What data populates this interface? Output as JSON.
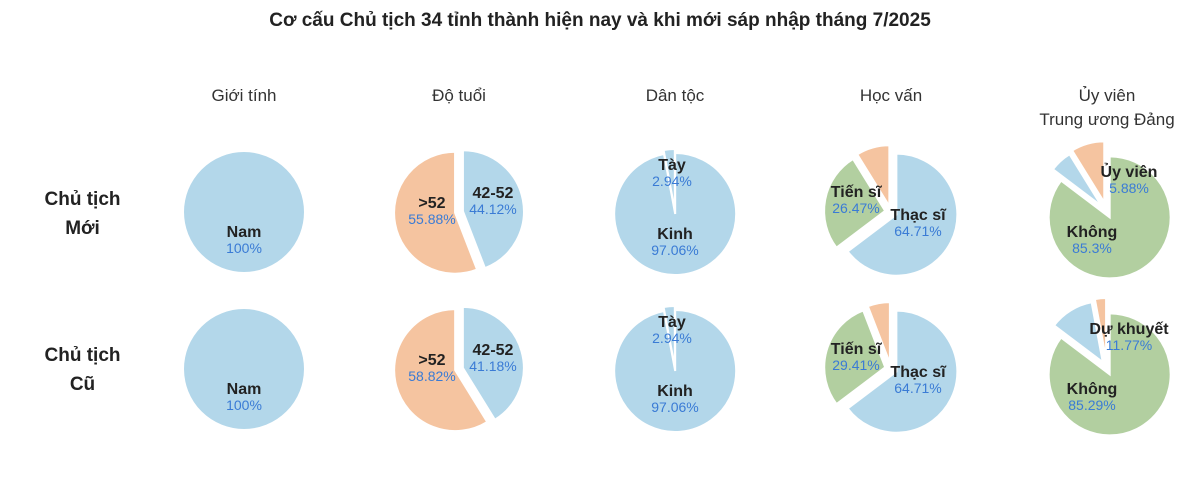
{
  "title": "Cơ cấu Chủ tịch 34 tỉnh thành hiện nay và khi mới sáp nhập tháng 7/2025",
  "columns": [
    "Giới tính",
    "Độ tuổi",
    "Dân tộc",
    "Học vấn",
    "Ủy viên",
    "Trung ương Đảng"
  ],
  "rows": [
    {
      "line1": "Chủ tịch",
      "line2": "Mới"
    },
    {
      "line1": "Chủ tịch",
      "line2": "Cũ"
    }
  ],
  "colors": {
    "blue": "#b3d7ea",
    "orange": "#f5c4a0",
    "green": "#b2cfa0",
    "pct_text": "#3a7bd5"
  },
  "chart_data": [
    {
      "type": "pie",
      "row": "Chủ tịch Mới",
      "column": "Giới tính",
      "categories": [
        "Nam"
      ],
      "values": [
        100
      ],
      "labels": [
        "100%"
      ]
    },
    {
      "type": "pie",
      "row": "Chủ tịch Mới",
      "column": "Độ tuổi",
      "categories": [
        "42-52",
        ">52"
      ],
      "values": [
        44.12,
        55.88
      ],
      "labels": [
        "44.12%",
        "55.88%"
      ]
    },
    {
      "type": "pie",
      "row": "Chủ tịch Mới",
      "column": "Dân tộc",
      "categories": [
        "Kinh",
        "Tày"
      ],
      "values": [
        97.06,
        2.94
      ],
      "labels": [
        "97.06%",
        "2.94%"
      ]
    },
    {
      "type": "pie",
      "row": "Chủ tịch Mới",
      "column": "Học vấn",
      "categories": [
        "Thạc sĩ",
        "Tiến sĩ",
        ""
      ],
      "values": [
        64.71,
        26.47,
        8.82
      ],
      "labels": [
        "64.71%",
        "26.47%",
        ""
      ]
    },
    {
      "type": "pie",
      "row": "Chủ tịch Mới",
      "column": "Ủy viên Trung ương Đảng",
      "categories": [
        "Không",
        "Ủy viên",
        ""
      ],
      "values": [
        85.3,
        5.88,
        8.82
      ],
      "labels": [
        "85.3%",
        "5.88%",
        ""
      ]
    },
    {
      "type": "pie",
      "row": "Chủ tịch Cũ",
      "column": "Giới tính",
      "categories": [
        "Nam"
      ],
      "values": [
        100
      ],
      "labels": [
        "100%"
      ]
    },
    {
      "type": "pie",
      "row": "Chủ tịch Cũ",
      "column": "Độ tuổi",
      "categories": [
        "42-52",
        ">52"
      ],
      "values": [
        41.18,
        58.82
      ],
      "labels": [
        "41.18%",
        "58.82%"
      ]
    },
    {
      "type": "pie",
      "row": "Chủ tịch Cũ",
      "column": "Dân tộc",
      "categories": [
        "Kinh",
        "Tày"
      ],
      "values": [
        97.06,
        2.94
      ],
      "labels": [
        "97.06%",
        "2.94%"
      ]
    },
    {
      "type": "pie",
      "row": "Chủ tịch Cũ",
      "column": "Học vấn",
      "categories": [
        "Thạc sĩ",
        "Tiến sĩ",
        ""
      ],
      "values": [
        64.71,
        29.41,
        5.88
      ],
      "labels": [
        "64.71%",
        "29.41%",
        ""
      ]
    },
    {
      "type": "pie",
      "row": "Chủ tịch Cũ",
      "column": "Ủy viên Trung ương Đảng",
      "categories": [
        "Không",
        "Dự khuyết",
        ""
      ],
      "values": [
        85.29,
        11.77,
        2.94
      ],
      "labels": [
        "85.29%",
        "11.77%",
        ""
      ]
    }
  ]
}
